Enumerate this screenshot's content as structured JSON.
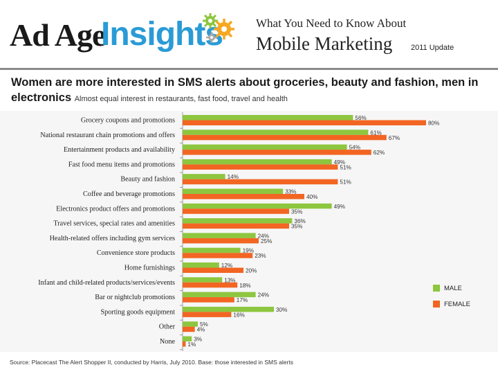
{
  "header": {
    "logo_text": "Ad Age Insights",
    "logo_part1": "Ad Age",
    "logo_part2": "Insights",
    "title_line1": "What You Need to Know About",
    "title_line2": "Mobile Marketing",
    "update": "2011 Update"
  },
  "headline": {
    "main": "Women are more interested in SMS alerts about groceries, beauty and fashion, men in electronics",
    "sub": "Almost equal interest in restaurants, fast food, travel and health"
  },
  "source": "Source: Placecast The Alert Shopper II, conducted by Harris, July 2010. Base: those interested in SMS alerts",
  "colors": {
    "male": "#8dc63f",
    "female": "#f26522",
    "background": "#f6f6f6",
    "logo_blue": "#2a9bd6"
  },
  "chart_data": {
    "type": "bar",
    "orientation": "horizontal",
    "categories": [
      "Grocery coupons and promotions",
      "National restaurant chain promotions and offers",
      "Entertainment products and availability",
      "Fast food menu items and promotions",
      "Beauty and fashion",
      "Coffee and beverage promotions",
      "Electronics product offers and promotions",
      "Travel services, special rates and amenities",
      "Health-related offers including gym services",
      "Convenience store products",
      "Home furnishings",
      "Infant and child-related products/services/events",
      "Bar or nightclub promotions",
      "Sporting goods equipment",
      "Other",
      "None"
    ],
    "series": [
      {
        "name": "MALE",
        "values": [
          56,
          61,
          54,
          49,
          14,
          33,
          49,
          36,
          24,
          19,
          12,
          13,
          24,
          30,
          5,
          3
        ],
        "labels": [
          "56%",
          "61%",
          "54%",
          "49%",
          "14%",
          "33%",
          "49%",
          "36%",
          "24%",
          "19%",
          "12%",
          "13%",
          "24%",
          "30%",
          "5%",
          "3%"
        ]
      },
      {
        "name": "FEMALE",
        "values": [
          80,
          67,
          62,
          51,
          51,
          40,
          35,
          35,
          25,
          23,
          20,
          18,
          17,
          16,
          4,
          1
        ],
        "labels": [
          "80%",
          "67%",
          "62%",
          "51%",
          "51%",
          "40%",
          "35%",
          "35%",
          "25%",
          "23%",
          "20%",
          "18%",
          "17%",
          "16%",
          "4%",
          "1%"
        ]
      }
    ],
    "xlim": [
      0,
      100
    ],
    "legend_position": "right"
  }
}
